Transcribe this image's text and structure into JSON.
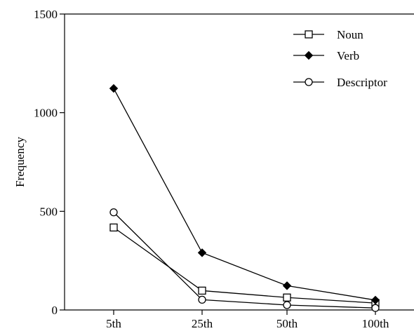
{
  "chart_data": {
    "type": "line",
    "categories": [
      "5th",
      "25th",
      "50th",
      "100th"
    ],
    "ylabel": "Frequency",
    "xlabel": "",
    "ylim": [
      0,
      1500
    ],
    "yticks": [
      "0",
      "500",
      "1000",
      "1500"
    ],
    "grid": false,
    "legend_position": "top-right",
    "series": [
      {
        "name": "Noun",
        "marker": "square-open",
        "values": [
          418,
          98,
          63,
          35
        ]
      },
      {
        "name": "Verb",
        "marker": "diamond-filled",
        "values": [
          1123,
          290,
          123,
          50
        ]
      },
      {
        "name": "Descriptor",
        "marker": "circle-open",
        "values": [
          495,
          52,
          25,
          10
        ]
      }
    ]
  }
}
